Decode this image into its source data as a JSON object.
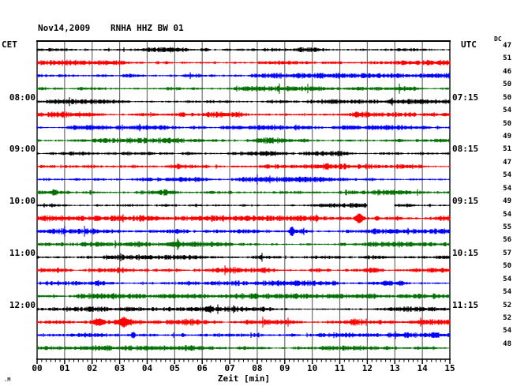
{
  "title": {
    "date": "Nov14,2009",
    "station": "RNHA HHZ BW 01"
  },
  "left_axis": {
    "header": "CET"
  },
  "right_axis": {
    "header": "UTC"
  },
  "dc_column": {
    "header": "DC"
  },
  "x_axis": {
    "label": "Zeit [min]",
    "ticks": [
      "00",
      "01",
      "02",
      "03",
      "04",
      "05",
      "06",
      "07",
      "08",
      "09",
      "10",
      "11",
      "12",
      "13",
      "14",
      "15"
    ],
    "minutes_span": 15,
    "minor_tick_seconds": 10
  },
  "watermark": ".M",
  "colors": {
    "black": "#000000",
    "red": "#ff0000",
    "blue": "#0000ff",
    "green": "#007000",
    "grid": "#6e6e6e",
    "border": "#2a2a2a",
    "background": "#ffffff"
  },
  "chart_data": {
    "type": "line",
    "subtype": "helicorder-seismogram",
    "title": "Nov14,2009 RNHA HHZ BW 01",
    "xlabel": "Zeit [min]",
    "x_range_minutes": [
      0,
      15
    ],
    "rows": 24,
    "row_duration_minutes": 15,
    "traces": [
      {
        "index": 0,
        "color": "black",
        "dc": 47,
        "base_amplitude": 1.9,
        "events": [
          {
            "type": "spike",
            "t": 6.15,
            "width": 0.15,
            "amp": 1.5
          }
        ]
      },
      {
        "index": 1,
        "color": "red",
        "dc": 51,
        "base_amplitude": 2.2,
        "events": []
      },
      {
        "index": 2,
        "color": "blue",
        "dc": 46,
        "base_amplitude": 2.1,
        "events": []
      },
      {
        "index": 3,
        "color": "green",
        "dc": 50,
        "base_amplitude": 2.1,
        "events": []
      },
      {
        "index": 4,
        "color": "black",
        "dc": 50,
        "cet_label": "08:00",
        "utc_label": "07:15",
        "base_amplitude": 1.9,
        "events": [
          {
            "type": "spike",
            "t": 12.9,
            "width": 0.12,
            "amp": 1.5
          }
        ]
      },
      {
        "index": 5,
        "color": "red",
        "dc": 54,
        "base_amplitude": 2.2,
        "events": []
      },
      {
        "index": 6,
        "color": "blue",
        "dc": 50,
        "base_amplitude": 2.1,
        "events": []
      },
      {
        "index": 7,
        "color": "green",
        "dc": 49,
        "base_amplitude": 2.1,
        "events": []
      },
      {
        "index": 8,
        "color": "black",
        "dc": 51,
        "cet_label": "09:00",
        "utc_label": "08:15",
        "base_amplitude": 1.9,
        "events": []
      },
      {
        "index": 9,
        "color": "red",
        "dc": 47,
        "base_amplitude": 2.2,
        "events": []
      },
      {
        "index": 10,
        "color": "blue",
        "dc": 54,
        "base_amplitude": 2.1,
        "events": []
      },
      {
        "index": 11,
        "color": "green",
        "dc": 54,
        "base_amplitude": 2.1,
        "events": []
      },
      {
        "index": 12,
        "color": "black",
        "dc": 49,
        "cet_label": "10:00",
        "utc_label": "09:15",
        "base_amplitude": 1.9,
        "events": [
          {
            "type": "gap",
            "start": 12.0,
            "end": 12.98
          }
        ]
      },
      {
        "index": 13,
        "color": "red",
        "dc": 54,
        "base_amplitude": 2.2,
        "events": [
          {
            "type": "burst",
            "start": 11.2,
            "end": 13.8,
            "factor": 1.5
          },
          {
            "type": "spike",
            "t": 11.7,
            "width": 0.22,
            "amp": 5.0
          },
          {
            "type": "spike",
            "t": 12.35,
            "width": 0.12,
            "amp": 2.0
          }
        ]
      },
      {
        "index": 14,
        "color": "blue",
        "dc": 55,
        "base_amplitude": 2.1,
        "events": [
          {
            "type": "spike",
            "t": 9.26,
            "width": 0.13,
            "amp": 4.0
          }
        ]
      },
      {
        "index": 15,
        "color": "green",
        "dc": 56,
        "base_amplitude": 2.1,
        "events": []
      },
      {
        "index": 16,
        "color": "black",
        "dc": 57,
        "cet_label": "11:00",
        "utc_label": "10:15",
        "base_amplitude": 1.9,
        "events": []
      },
      {
        "index": 17,
        "color": "red",
        "dc": 50,
        "base_amplitude": 2.2,
        "events": []
      },
      {
        "index": 18,
        "color": "blue",
        "dc": 54,
        "base_amplitude": 2.1,
        "events": []
      },
      {
        "index": 19,
        "color": "green",
        "dc": 54,
        "base_amplitude": 2.1,
        "events": []
      },
      {
        "index": 20,
        "color": "black",
        "dc": 52,
        "cet_label": "12:00",
        "utc_label": "11:15",
        "base_amplitude": 1.9,
        "events": [
          {
            "type": "spike",
            "t": 6.3,
            "width": 0.15,
            "amp": 2.0
          }
        ]
      },
      {
        "index": 21,
        "color": "red",
        "dc": 52,
        "base_amplitude": 2.2,
        "events": [
          {
            "type": "burst",
            "start": 1.9,
            "end": 4.8,
            "factor": 2.0
          },
          {
            "type": "burst",
            "start": 4.8,
            "end": 6.3,
            "factor": 1.3
          },
          {
            "type": "spike",
            "t": 2.24,
            "width": 0.3,
            "amp": 3.0
          },
          {
            "type": "spike",
            "t": 3.15,
            "width": 0.35,
            "amp": 4.5
          },
          {
            "type": "spike",
            "t": 11.5,
            "width": 0.15,
            "amp": 1.5
          }
        ]
      },
      {
        "index": 22,
        "color": "blue",
        "dc": 54,
        "base_amplitude": 2.1,
        "events": [
          {
            "type": "spike",
            "t": 3.5,
            "width": 0.1,
            "amp": 2.5
          },
          {
            "type": "spike",
            "t": 5.3,
            "width": 0.1,
            "amp": 2.0
          }
        ]
      },
      {
        "index": 23,
        "color": "green",
        "dc": 48,
        "base_amplitude": 2.1,
        "events": []
      }
    ]
  }
}
